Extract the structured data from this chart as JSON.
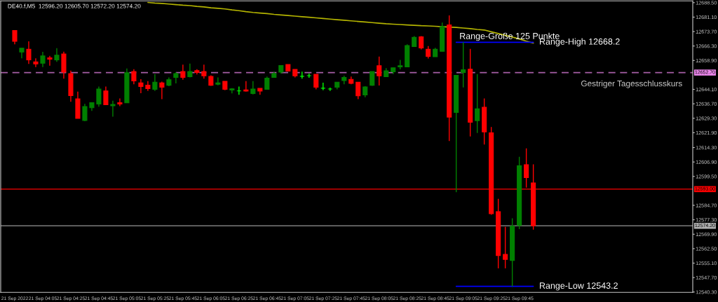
{
  "chart_data": {
    "type": "candlestick",
    "title": "DE40.f,M5  12596.20 12605.70 12572.20 12574.20",
    "categories": [
      "21 Sep 2022",
      null,
      null,
      null,
      "21 Sep 04:05",
      null,
      null,
      null,
      "21 Sep 04:25",
      null,
      null,
      null,
      "21 Sep 04:45",
      null,
      null,
      null,
      "21 Sep 05:05",
      null,
      null,
      null,
      "21 Sep 05:25",
      null,
      null,
      null,
      "21 Sep 05:45",
      null,
      null,
      null,
      "21 Sep 06:05",
      null,
      null,
      null,
      "21 Sep 06:25",
      null,
      null,
      null,
      "21 Sep 06:45",
      null,
      null,
      null,
      "21 Sep 07:05",
      null,
      null,
      null,
      "21 Sep 07:25",
      null,
      null,
      null,
      "21 Sep 07:45",
      null,
      null,
      null,
      "21 Sep 08:05",
      null,
      null,
      null,
      "21 Sep 08:25",
      null,
      null,
      null,
      "21 Sep 08:45",
      null,
      null,
      null,
      "21 Sep 09:05",
      null,
      null,
      null,
      "21 Sep 09:25",
      null,
      null,
      null,
      "21 Sep 09:45",
      null,
      null
    ],
    "ohlc": [
      [
        12674.2,
        12674.4,
        12667.2,
        12668.7
      ],
      [
        12663.2,
        12665.2,
        12660.0,
        12665.2
      ],
      [
        12664.6,
        12668.7,
        12657.1,
        12659.2
      ],
      [
        12658.2,
        12660.0,
        12655.5,
        12657.1
      ],
      [
        12657.5,
        12663.3,
        12655.5,
        12661.2
      ],
      [
        12660.2,
        12661.2,
        12656.2,
        12659.6
      ],
      [
        12659.2,
        12665.2,
        12658.2,
        12661.6
      ],
      [
        12662.2,
        12663.4,
        12649.6,
        12652.9
      ],
      [
        12652.2,
        12653.7,
        12637.7,
        12640.9
      ],
      [
        12639.2,
        12642.9,
        12629.2,
        12629.2
      ],
      [
        12628.2,
        12636.7,
        12627.8,
        12635.3
      ],
      [
        12634.7,
        12637.3,
        12633.1,
        12637.3
      ],
      [
        12636.6,
        12645.5,
        12635.2,
        12644.3
      ],
      [
        12643.3,
        12645.5,
        12636.2,
        12636.2
      ],
      [
        12635.7,
        12638.3,
        12630.1,
        12636.4
      ],
      [
        12637.3,
        12639.4,
        12635.5,
        12636.6
      ],
      [
        12637.2,
        12654.8,
        12637.2,
        12652.6
      ],
      [
        12653.2,
        12654.4,
        12646.7,
        12648.4
      ],
      [
        12647.4,
        12649.3,
        12642.1,
        12645.6
      ],
      [
        12646.2,
        12648.3,
        12643.3,
        12644.5
      ],
      [
        12644.1,
        12651.9,
        12643.3,
        12647.8
      ],
      [
        12647.4,
        12648.1,
        12639.1,
        12645.2
      ],
      [
        12646.2,
        12650.2,
        12645.7,
        12649.0
      ],
      [
        12650.2,
        12652.9,
        12647.2,
        12652.2
      ],
      [
        12653.2,
        12656.8,
        12649.0,
        12650.2
      ],
      [
        12650.6,
        12657.3,
        12650.2,
        12653.2
      ],
      [
        12653.7,
        12654.4,
        12651.7,
        12652.7
      ],
      [
        12653.2,
        12656.8,
        12649.6,
        12651.0
      ],
      [
        12650.7,
        12651.3,
        12645.9,
        12646.2
      ],
      [
        12646.7,
        12650.2,
        12646.2,
        12647.4
      ],
      [
        12648.2,
        12648.2,
        12643.7,
        12644.1
      ],
      [
        12643.8,
        12644.7,
        12642.0,
        12644.4
      ],
      [
        12643.3,
        12645.5,
        12641.3,
        12643.3
      ],
      [
        12643.8,
        12648.3,
        12642.9,
        12643.2
      ],
      [
        12642.0,
        12648.3,
        12641.5,
        12644.3
      ],
      [
        12644.6,
        12644.6,
        12641.3,
        12643.2
      ],
      [
        12644.1,
        12650.7,
        12644.1,
        12649.8
      ],
      [
        12650.2,
        12653.1,
        12650.2,
        12652.2
      ],
      [
        12652.9,
        12656.3,
        12652.2,
        12656.3
      ],
      [
        12656.8,
        12656.8,
        12653.5,
        12653.5
      ],
      [
        12654.3,
        12654.3,
        12650.2,
        12651.0
      ],
      [
        12650.8,
        12653.2,
        12649.6,
        12650.8
      ],
      [
        12651.1,
        12652.2,
        12650.0,
        12651.1
      ],
      [
        12651.8,
        12651.8,
        12644.1,
        12645.2
      ],
      [
        12644.7,
        12647.5,
        12643.7,
        12644.7
      ],
      [
        12644.3,
        12645.0,
        12643.3,
        12644.3
      ],
      [
        12645.2,
        12647.8,
        12644.1,
        12647.8
      ],
      [
        12648.6,
        12651.1,
        12646.7,
        12650.2
      ],
      [
        12649.2,
        12650.7,
        12646.7,
        12647.2
      ],
      [
        12647.8,
        12647.8,
        12639.1,
        12640.8
      ],
      [
        12641.3,
        12645.7,
        12640.1,
        12645.3
      ],
      [
        12646.2,
        12653.2,
        12645.9,
        12653.2
      ],
      [
        12656.2,
        12660.9,
        12646.1,
        12651.0
      ],
      [
        12650.6,
        12655.0,
        12650.5,
        12653.6
      ],
      [
        12653.1,
        12655.1,
        12651.9,
        12655.1
      ],
      [
        12655.6,
        12659.2,
        12654.3,
        12656.2
      ],
      [
        12655.6,
        12667.2,
        12655.6,
        12666.5
      ],
      [
        12666.0,
        12671.4,
        12665.8,
        12670.7
      ],
      [
        12671.0,
        12671.4,
        12664.6,
        12665.3
      ],
      [
        12664.6,
        12666.3,
        12659.9,
        12661.0
      ],
      [
        12660.8,
        12665.4,
        12660.8,
        12664.6
      ],
      [
        12663.6,
        12678.3,
        12663.6,
        12676.2
      ],
      [
        12677.1,
        12682.0,
        12617.6,
        12629.9
      ],
      [
        12632.3,
        12651.3,
        12591.4,
        12651.3
      ],
      [
        12652.7,
        12668.2,
        12645.1,
        12654.1
      ],
      [
        12654.4,
        12664.8,
        12620.0,
        12627.3
      ],
      [
        12628.1,
        12651.9,
        12621.8,
        12634.1
      ],
      [
        12634.9,
        12639.4,
        12615.8,
        12622.3
      ],
      [
        12621.8,
        12624.8,
        12579.9,
        12580.4
      ],
      [
        12581.5,
        12588.0,
        12552.4,
        12559.0
      ],
      [
        12559.6,
        12573.7,
        12552.4,
        12557.0
      ],
      [
        12556.5,
        12578.1,
        12543.2,
        12574.0
      ],
      [
        12574.4,
        12609.6,
        12572.5,
        12605.0
      ],
      [
        12605.5,
        12613.9,
        12593.8,
        12598.9
      ],
      [
        12596.2,
        12605.7,
        12572.2,
        12574.2
      ]
    ],
    "colors": [
      "#ff0000",
      "#008000",
      "#ff0000",
      "#ff0000",
      "#008000",
      "#ff0000",
      "#008000",
      "#ff0000",
      "#ff0000",
      "#ff0000",
      "#008000",
      "#008000",
      "#008000",
      "#ff0000",
      "#008000",
      "#ff0000",
      "#008000",
      "#ff0000",
      "#ff0000",
      "#ff0000",
      "#008000",
      "#ff0000",
      "#008000",
      "#008000",
      "#ff0000",
      "#008000",
      "#ff0000",
      "#ff0000",
      "#ff0000",
      "#008000",
      "#ff0000",
      "#008000",
      "#00ff00",
      "#ff0000",
      "#008000",
      "#ff0000",
      "#008000",
      "#008000",
      "#008000",
      "#ff0000",
      "#ff0000",
      "#00ff00",
      "#00ff00",
      "#ff0000",
      "#00ff00",
      "#00ff00",
      "#008000",
      "#008000",
      "#ff0000",
      "#ff0000",
      "#008000",
      "#008000",
      "#ff0000",
      "#008000",
      "#008000",
      "#008000",
      "#008000",
      "#008000",
      "#ff0000",
      "#ff0000",
      "#008000",
      "#008000",
      "#ff0000",
      "#008000",
      "#008000",
      "#ff0000",
      "#008000",
      "#ff0000",
      "#ff0000",
      "#ff0000",
      "#ff0000",
      "#008000",
      "#008000",
      "#ff0000",
      "#ff0000"
    ],
    "series": [
      {
        "type": "line",
        "color": "#b4b400",
        "values": [
          null,
          null,
          null,
          null,
          null,
          null,
          null,
          null,
          null,
          null,
          null,
          null,
          null,
          null,
          null,
          null,
          null,
          null,
          null,
          12688.6,
          12688.3,
          12688.1,
          12687.8,
          12687.5,
          12687.2,
          12687.0,
          12686.6,
          12686.3,
          12685.9,
          12685.6,
          12685.3,
          12684.8,
          12684.4,
          12683.9,
          12683.5,
          12683.2,
          12682.9,
          12682.5,
          12682.2,
          12681.9,
          12681.6,
          12681.3,
          12681.0,
          12680.7,
          12680.4,
          12680.1,
          12679.8,
          12679.5,
          12679.2,
          12678.9,
          12678.6,
          12678.3,
          12678.0,
          12677.7,
          12677.5,
          12677.3,
          12677.1,
          12676.9,
          12676.7,
          12676.6,
          12676.4,
          12676.2,
          12676.0,
          12675.8,
          12675.5,
          12675.2,
          12674.8,
          12674.5,
          12673.6,
          12672.7,
          12671.8,
          12670.9,
          12669.9,
          12668.8,
          12667.8
        ]
      },
      {
        "type": "line",
        "color": "#0000ff",
        "values": [
          null,
          null,
          null,
          null,
          null,
          null,
          null,
          null,
          null,
          null,
          null,
          null,
          null,
          null,
          null,
          null,
          null,
          null,
          null,
          null,
          null,
          null,
          null,
          null,
          null,
          null,
          null,
          null,
          null,
          null,
          null,
          null,
          null,
          null,
          null,
          null,
          null,
          null,
          null,
          null,
          null,
          null,
          null,
          null,
          null,
          null,
          null,
          null,
          null,
          null,
          null,
          null,
          null,
          null,
          null,
          null,
          null,
          null,
          null,
          null,
          null,
          null,
          null,
          12668.2,
          12668.2,
          12668.2,
          12668.2,
          12668.2,
          12668.2,
          12668.2,
          12668.2,
          12668.2,
          12668.2,
          12668.2,
          12668.2
        ]
      },
      {
        "type": "line",
        "color": "#0000ff",
        "values": [
          null,
          null,
          null,
          null,
          null,
          null,
          null,
          null,
          null,
          null,
          null,
          null,
          null,
          null,
          null,
          null,
          null,
          null,
          null,
          null,
          null,
          null,
          null,
          null,
          null,
          null,
          null,
          null,
          null,
          null,
          null,
          null,
          null,
          null,
          null,
          null,
          null,
          null,
          null,
          null,
          null,
          null,
          null,
          null,
          null,
          null,
          null,
          null,
          null,
          null,
          null,
          null,
          null,
          null,
          null,
          null,
          null,
          null,
          null,
          null,
          null,
          null,
          null,
          12543.2,
          12543.2,
          12543.2,
          12543.2,
          12543.2,
          12543.2,
          12543.2,
          12543.2,
          12543.2,
          12543.2,
          12543.2,
          12543.2
        ]
      }
    ],
    "ref_lines": [
      {
        "axis": "y",
        "value": 12652.7,
        "label": "12652.70",
        "color": "#ee88ee",
        "line_style": "dashed"
      },
      {
        "axis": "y",
        "value": 12593.0,
        "label": "12593.00",
        "color": "#ff0000",
        "line_style": "solid"
      },
      {
        "axis": "y",
        "value": 12574.2,
        "label": "12574.20",
        "color": "#b0b0b0",
        "line_style": "solid"
      }
    ],
    "annotations": [
      "Range-Große 125 Punkte",
      "Range-High 12668.2",
      "Range-Low 12543.2",
      "Gestriger Tagesschlusskurs"
    ],
    "ylim": [
      12540.1,
      12689.4
    ],
    "yticks": [
      {
        "value": 12688.5,
        "label": "12688.50"
      },
      {
        "value": 12681.1,
        "label": "12681.10"
      },
      {
        "value": 12673.7,
        "label": "12673.70"
      },
      {
        "value": 12666.3,
        "label": "12666.30"
      },
      {
        "value": 12658.9,
        "label": "12658.90"
      },
      {
        "value": 12644.1,
        "label": "12644.10"
      },
      {
        "value": 12636.7,
        "label": "12636.70"
      },
      {
        "value": 12629.3,
        "label": "12629.30"
      },
      {
        "value": 12621.9,
        "label": "12621.90"
      },
      {
        "value": 12614.3,
        "label": "12614.30"
      },
      {
        "value": 12606.9,
        "label": "12606.90"
      },
      {
        "value": 12599.5,
        "label": "12599.50"
      },
      {
        "value": 12584.7,
        "label": "12584.70"
      },
      {
        "value": 12577.3,
        "label": "12577.30"
      },
      {
        "value": 12569.9,
        "label": "12569.90"
      },
      {
        "value": 12562.5,
        "label": "12562.50"
      },
      {
        "value": 12555.1,
        "label": "12555.10"
      },
      {
        "value": 12547.7,
        "label": "12547.70"
      },
      {
        "value": 12540.3,
        "label": "12540.30"
      }
    ],
    "grid": false,
    "legend": false
  }
}
